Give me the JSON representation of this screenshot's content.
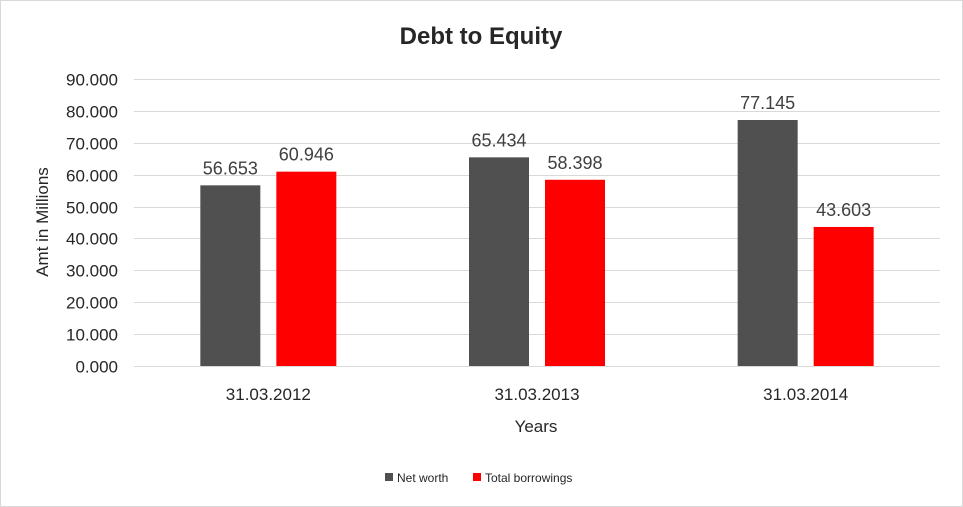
{
  "chart_data": {
    "type": "bar",
    "title": "Debt to Equity",
    "xlabel": "Years",
    "ylabel": "Amt in Millions",
    "categories": [
      "31.03.2012",
      "31.03.2013",
      "31.03.2014"
    ],
    "series": [
      {
        "name": "Net worth",
        "values": [
          56.653,
          65.434,
          77.145
        ],
        "color": "#505050"
      },
      {
        "name": "Total borrowings",
        "values": [
          60.946,
          58.398,
          43.603
        ],
        "color": "#ff0000"
      }
    ],
    "data_labels": [
      [
        "56.653",
        "65.434",
        "77.145"
      ],
      [
        "60.946",
        "58.398",
        "43.603"
      ]
    ],
    "ylim": [
      0,
      90
    ],
    "yticks": [
      "0.000",
      "10.000",
      "20.000",
      "30.000",
      "40.000",
      "50.000",
      "60.000",
      "70.000",
      "80.000",
      "90.000"
    ],
    "grid": true,
    "legend_position": "bottom"
  }
}
